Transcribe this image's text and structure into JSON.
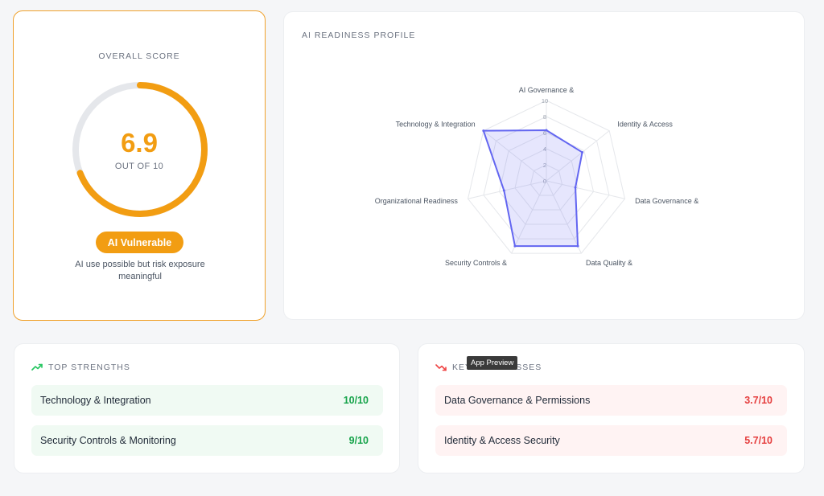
{
  "score_card": {
    "title": "OVERALL SCORE",
    "value": "6.9",
    "out_of": "OUT OF 10",
    "score": 6.9,
    "max": 10,
    "badge": "AI Vulnerable",
    "description": "AI use possible but risk exposure meaningful",
    "accent_color": "#f29d12"
  },
  "radar_card": {
    "title": "AI READINESS PROFILE"
  },
  "chart_data": {
    "type": "radar",
    "title": "AI READINESS PROFILE",
    "categories": [
      "AI Governance &",
      "Identity & Access",
      "Data Governance &",
      "Data Quality &",
      "Security Controls &",
      "Organizational Readiness",
      "Technology & Integration"
    ],
    "values": [
      6.3,
      5.7,
      3.7,
      9.0,
      9.0,
      5.4,
      10.0
    ],
    "ticks": [
      "0",
      "2",
      "4",
      "6",
      "8",
      "10"
    ],
    "range": [
      0,
      10
    ],
    "series_color": "#6366f1",
    "grid": true
  },
  "strengths": {
    "title": "TOP STRENGTHS",
    "icon": "trending-up-icon",
    "items": [
      {
        "label": "Technology & Integration",
        "value": "10/10"
      },
      {
        "label": "Security Controls & Monitoring",
        "value": "9/10"
      }
    ]
  },
  "weaknesses": {
    "title": "KEY WEAKNESSES",
    "icon": "trending-down-icon",
    "items": [
      {
        "label": "Data Governance & Permissions",
        "value": "3.7/10"
      },
      {
        "label": "Identity & Access Security",
        "value": "5.7/10"
      }
    ]
  },
  "tooltip": {
    "text": "App Preview"
  }
}
